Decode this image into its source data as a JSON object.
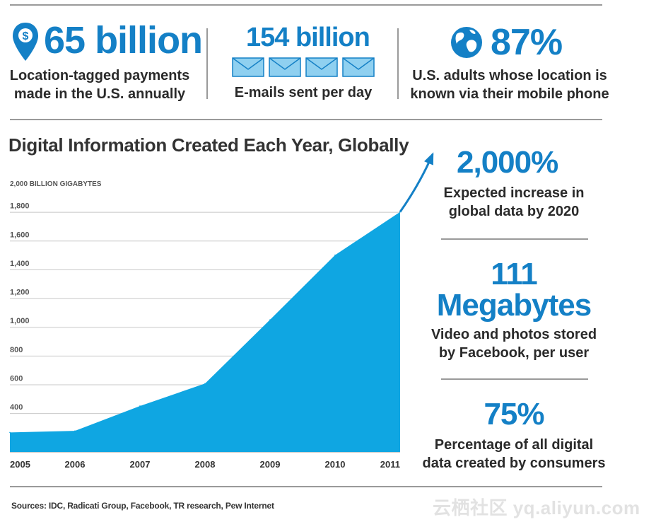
{
  "header_stats": [
    {
      "value": "65 billion",
      "label_lines": [
        "Location-tagged payments",
        "made in the U.S. annually"
      ],
      "icon": "location-pin-dollar-icon"
    },
    {
      "value": "154 billion",
      "label_lines": [
        "E-mails sent per day"
      ],
      "icon": "envelope-icon"
    },
    {
      "value": "87%",
      "label_lines": [
        "U.S. adults whose location is",
        "known via their mobile phone"
      ],
      "icon": "globe-icon"
    }
  ],
  "side_stats": [
    {
      "value_lines": [
        "2,000%"
      ],
      "label_lines": [
        "Expected increase in",
        "global data by 2020"
      ]
    },
    {
      "value_lines": [
        "111",
        "Megabytes"
      ],
      "label_lines": [
        "Video and photos stored",
        "by Facebook, per user"
      ]
    },
    {
      "value_lines": [
        "75%"
      ],
      "label_lines": [
        "Percentage of all digital",
        "data created by consumers"
      ]
    }
  ],
  "chart_data": {
    "type": "area",
    "title": "Digital Information Created Each Year, Globally",
    "ylabel": "2,000 BILLION GIGABYTES",
    "y_tick_labels": [
      "2,000 BILLION GIGABYTES",
      "1,800",
      "1,600",
      "1,400",
      "1,200",
      "1,000",
      "800",
      "600",
      "400"
    ],
    "y_tick_values": [
      2000,
      1800,
      1600,
      1400,
      1200,
      1000,
      800,
      600,
      400
    ],
    "ylim": [
      130,
      2000
    ],
    "x": [
      "2005",
      "2006",
      "2007",
      "2008",
      "2009",
      "2010",
      "2011"
    ],
    "series": [
      {
        "values": [
          266,
          277,
          450,
          606,
          1050,
          1500,
          1800
        ]
      }
    ],
    "trend_arrow": true,
    "grid": true,
    "color": "#0fa6e2"
  },
  "sources": "Sources: IDC, Radicati Group, Facebook, TR research, Pew Internet",
  "watermark": "云栖社区 yq.aliyun.com",
  "colors": {
    "accent": "#1480c6",
    "area": "#0fa6e2",
    "rule": "#9a9a9a"
  }
}
